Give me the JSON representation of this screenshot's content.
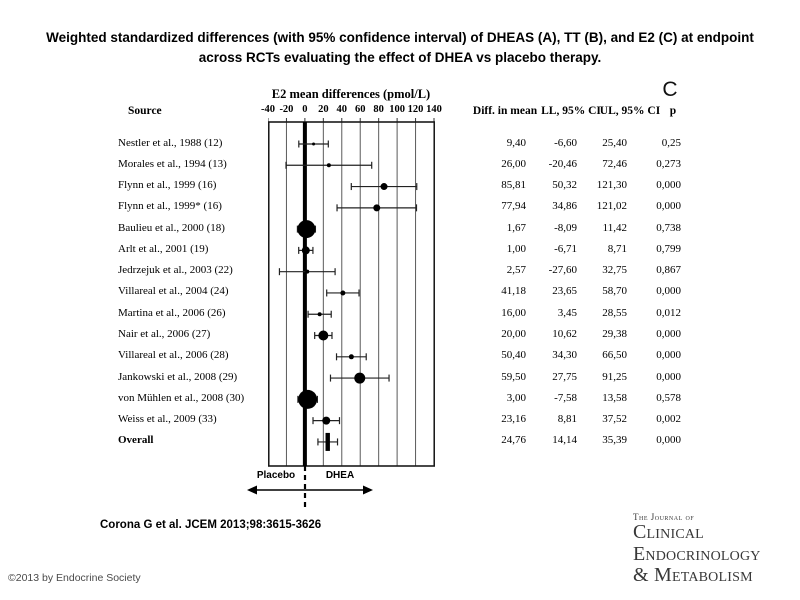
{
  "figure": {
    "title": "Weighted standardized differences (with 95% confidence interval) of DHEAS (A), TT (B), and E2 (C) at endpoint across RCTs evaluating the effect of DHEA vs placebo therapy.",
    "panel_label": "C",
    "citation": "Corona G et al. JCEM 2013;98:3615-3626",
    "copyright": "©2013 by Endocrine Society",
    "journal_logo": {
      "line1": "The Journal of",
      "line2": "Clinical",
      "line3": "Endocrinology",
      "line4": "& Metabolism"
    }
  },
  "chart_data": {
    "type": "forest",
    "axis_title": "E2 mean differences (pmol/L)",
    "xlim": [
      -40,
      140
    ],
    "ticks": [
      -40,
      -20,
      0,
      20,
      40,
      60,
      80,
      100,
      120,
      140
    ],
    "reference_line": 0,
    "grid": "vertical-every-20",
    "direction_labels": {
      "left": "Placebo",
      "right": "DHEA"
    },
    "columns": {
      "source": "Source",
      "diff": "Diff. in mean",
      "ll": "LL, 95% CI",
      "ul": "UL, 95% CI",
      "p": "p"
    },
    "marker_color": "#000000",
    "rows": [
      {
        "source": "Nestler et al., 1988 (12)",
        "diff": "9,40",
        "ll": "-6,60",
        "ul": "25,40",
        "p": "0,25",
        "diff_v": 9.4,
        "ll_v": -6.6,
        "ul_v": 25.4,
        "w": 3
      },
      {
        "source": "Morales et al., 1994 (13)",
        "diff": "26,00",
        "ll": "-20,46",
        "ul": "72,46",
        "p": "0,273",
        "diff_v": 26.0,
        "ll_v": -20.46,
        "ul_v": 72.46,
        "w": 4
      },
      {
        "source": "Flynn et al., 1999 (16)",
        "diff": "85,81",
        "ll": "50,32",
        "ul": "121,30",
        "p": "0,000",
        "diff_v": 85.81,
        "ll_v": 50.32,
        "ul_v": 121.3,
        "w": 7
      },
      {
        "source": "Flynn et al., 1999* (16)",
        "diff": "77,94",
        "ll": "34,86",
        "ul": "121,02",
        "p": "0,000",
        "diff_v": 77.94,
        "ll_v": 34.86,
        "ul_v": 121.02,
        "w": 7
      },
      {
        "source": "Baulieu et al., 2000 (18)",
        "diff": "1,67",
        "ll": "-8,09",
        "ul": "11,42",
        "p": "0,738",
        "diff_v": 1.67,
        "ll_v": -8.09,
        "ul_v": 11.42,
        "w": 18
      },
      {
        "source": "Arlt et al., 2001 (19)",
        "diff": "1,00",
        "ll": "-6,71",
        "ul": "8,71",
        "p": "0,799",
        "diff_v": 1.0,
        "ll_v": -6.71,
        "ul_v": 8.71,
        "w": 8
      },
      {
        "source": "Jedrzejuk et al., 2003 (22)",
        "diff": "2,57",
        "ll": "-27,60",
        "ul": "32,75",
        "p": "0,867",
        "diff_v": 2.57,
        "ll_v": -27.6,
        "ul_v": 32.75,
        "w": 4
      },
      {
        "source": "Villareal et al., 2004 (24)",
        "diff": "41,18",
        "ll": "23,65",
        "ul": "58,70",
        "p": "0,000",
        "diff_v": 41.18,
        "ll_v": 23.65,
        "ul_v": 58.7,
        "w": 5
      },
      {
        "source": "Martina et al., 2006 (26)",
        "diff": "16,00",
        "ll": "3,45",
        "ul": "28,55",
        "p": "0,012",
        "diff_v": 16.0,
        "ll_v": 3.45,
        "ul_v": 28.55,
        "w": 4
      },
      {
        "source": "Nair et al., 2006 (27)",
        "diff": "20,00",
        "ll": "10,62",
        "ul": "29,38",
        "p": "0,000",
        "diff_v": 20.0,
        "ll_v": 10.62,
        "ul_v": 29.38,
        "w": 10
      },
      {
        "source": "Villareal et al., 2006 (28)",
        "diff": "50,40",
        "ll": "34,30",
        "ul": "66,50",
        "p": "0,000",
        "diff_v": 50.4,
        "ll_v": 34.3,
        "ul_v": 66.5,
        "w": 5
      },
      {
        "source": "Jankowski et al., 2008 (29)",
        "diff": "59,50",
        "ll": "27,75",
        "ul": "91,25",
        "p": "0,000",
        "diff_v": 59.5,
        "ll_v": 27.75,
        "ul_v": 91.25,
        "w": 11
      },
      {
        "source": "von Mühlen et al., 2008 (30)",
        "diff": "3,00",
        "ll": "-7,58",
        "ul": "13,58",
        "p": "0,578",
        "diff_v": 3.0,
        "ll_v": -7.58,
        "ul_v": 13.58,
        "w": 19
      },
      {
        "source": "Weiss et al., 2009 (33)",
        "diff": "23,16",
        "ll": "8,81",
        "ul": "37,52",
        "p": "0,002",
        "diff_v": 23.16,
        "ll_v": 8.81,
        "ul_v": 37.52,
        "w": 8
      },
      {
        "source": "Overall",
        "diff": "24,76",
        "ll": "14,14",
        "ul": "35,39",
        "p": "0,000",
        "diff_v": 24.76,
        "ll_v": 14.14,
        "ul_v": 35.39,
        "overall": true
      }
    ]
  }
}
